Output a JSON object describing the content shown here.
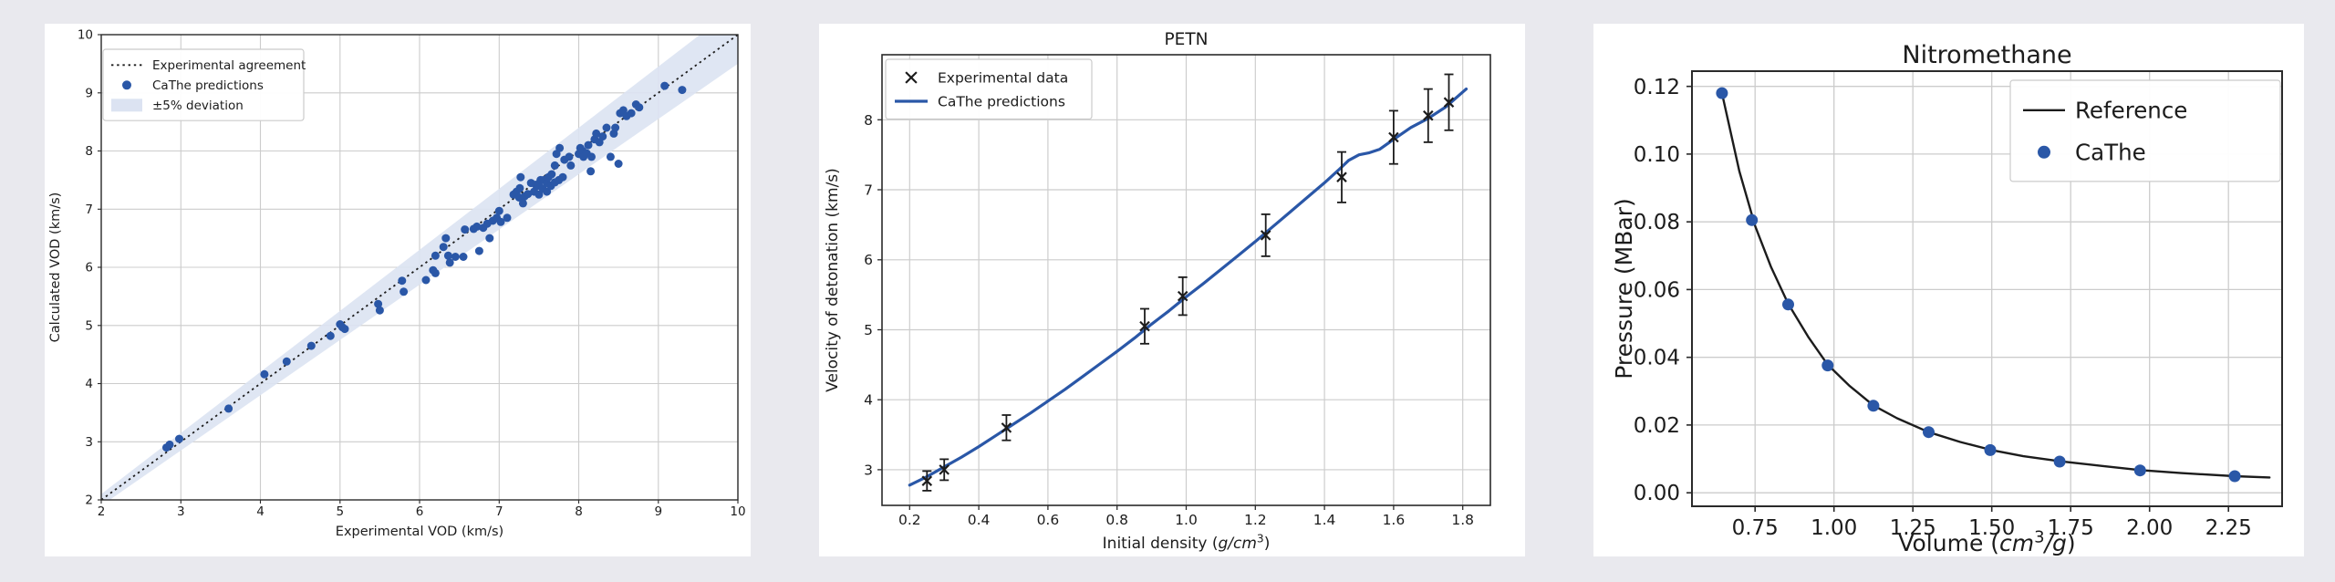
{
  "page": {
    "background": "#e9e9ee",
    "panel_background": "#ffffff"
  },
  "colors": {
    "blue": "#2a57a7",
    "black": "#1c1c1c",
    "band": "#dce3f2",
    "grid": "#cccccc",
    "spine": "#2a2a2a",
    "text": "#1c1c1c",
    "legend_border": "#cbcbcb"
  },
  "chart_data": [
    {
      "type": "scatter",
      "title": "",
      "xlabel": "Experimental VOD (km/s)",
      "ylabel": "Calculated VOD (km/s)",
      "xlabel_italic_unit": false,
      "ylabel_italic_unit": false,
      "xlim": [
        2,
        10
      ],
      "ylim": [
        2,
        10
      ],
      "xticks": [
        2,
        3,
        4,
        5,
        6,
        7,
        8,
        9,
        10
      ],
      "xtick_labels": [
        "2",
        "3",
        "4",
        "5",
        "6",
        "7",
        "8",
        "9",
        "10"
      ],
      "yticks": [
        2,
        3,
        4,
        5,
        6,
        7,
        8,
        9,
        10
      ],
      "ytick_labels": [
        "2",
        "3",
        "4",
        "5",
        "6",
        "7",
        "8",
        "9",
        "10"
      ],
      "grid": true,
      "identity_line": {
        "color": "#1c1c1c",
        "style": "dotted"
      },
      "band": {
        "pct": 0.05,
        "color": "#dce3f2"
      },
      "legend_position": "top-left",
      "legend": [
        {
          "label": "Experimental agreement",
          "swatch": "dotted",
          "color": "#1c1c1c"
        },
        {
          "label": "CaThe predictions",
          "swatch": "dot",
          "color": "#2a57a7"
        },
        {
          "label": "±5% deviation",
          "swatch": "band",
          "color": "#dce3f2"
        }
      ],
      "series": [
        {
          "name": "CaThe predictions",
          "kind": "scatter",
          "color": "#2a57a7",
          "points": [
            [
              2.82,
              2.9
            ],
            [
              2.86,
              2.95
            ],
            [
              2.98,
              3.05
            ],
            [
              3.6,
              3.57
            ],
            [
              4.05,
              4.16
            ],
            [
              4.33,
              4.38
            ],
            [
              4.64,
              4.65
            ],
            [
              4.88,
              4.82
            ],
            [
              5.0,
              5.02
            ],
            [
              5.03,
              4.97
            ],
            [
              5.06,
              4.94
            ],
            [
              5.48,
              5.37
            ],
            [
              5.5,
              5.26
            ],
            [
              5.78,
              5.77
            ],
            [
              5.8,
              5.58
            ],
            [
              6.08,
              5.78
            ],
            [
              6.17,
              5.95
            ],
            [
              6.2,
              5.9
            ],
            [
              6.2,
              6.2
            ],
            [
              6.3,
              6.35
            ],
            [
              6.33,
              6.5
            ],
            [
              6.36,
              6.2
            ],
            [
              6.38,
              6.08
            ],
            [
              6.45,
              6.18
            ],
            [
              6.55,
              6.18
            ],
            [
              6.57,
              6.65
            ],
            [
              6.68,
              6.66
            ],
            [
              6.72,
              6.7
            ],
            [
              6.75,
              6.28
            ],
            [
              6.8,
              6.68
            ],
            [
              6.85,
              6.75
            ],
            [
              6.88,
              6.5
            ],
            [
              6.92,
              6.8
            ],
            [
              6.97,
              6.85
            ],
            [
              7.0,
              6.97
            ],
            [
              7.02,
              6.78
            ],
            [
              7.1,
              6.85
            ],
            [
              7.18,
              7.25
            ],
            [
              7.22,
              7.3
            ],
            [
              7.25,
              7.2
            ],
            [
              7.26,
              7.36
            ],
            [
              7.27,
              7.55
            ],
            [
              7.3,
              7.1
            ],
            [
              7.32,
              7.22
            ],
            [
              7.36,
              7.26
            ],
            [
              7.4,
              7.45
            ],
            [
              7.44,
              7.3
            ],
            [
              7.46,
              7.42
            ],
            [
              7.5,
              7.25
            ],
            [
              7.5,
              7.4
            ],
            [
              7.52,
              7.5
            ],
            [
              7.55,
              7.35
            ],
            [
              7.56,
              7.5
            ],
            [
              7.6,
              7.3
            ],
            [
              7.6,
              7.45
            ],
            [
              7.62,
              7.55
            ],
            [
              7.65,
              7.4
            ],
            [
              7.66,
              7.6
            ],
            [
              7.7,
              7.46
            ],
            [
              7.7,
              7.75
            ],
            [
              7.72,
              7.95
            ],
            [
              7.75,
              7.5
            ],
            [
              7.76,
              8.05
            ],
            [
              7.8,
              7.55
            ],
            [
              7.82,
              7.85
            ],
            [
              7.88,
              7.9
            ],
            [
              7.9,
              7.75
            ],
            [
              8.0,
              7.95
            ],
            [
              8.02,
              8.05
            ],
            [
              8.05,
              8.0
            ],
            [
              8.06,
              7.9
            ],
            [
              8.1,
              7.96
            ],
            [
              8.12,
              8.1
            ],
            [
              8.15,
              7.65
            ],
            [
              8.16,
              7.9
            ],
            [
              8.2,
              8.2
            ],
            [
              8.22,
              8.3
            ],
            [
              8.26,
              8.15
            ],
            [
              8.3,
              8.25
            ],
            [
              8.35,
              8.4
            ],
            [
              8.4,
              7.9
            ],
            [
              8.44,
              8.3
            ],
            [
              8.46,
              8.4
            ],
            [
              8.5,
              7.78
            ],
            [
              8.52,
              8.65
            ],
            [
              8.56,
              8.7
            ],
            [
              8.6,
              8.6
            ],
            [
              8.66,
              8.65
            ],
            [
              8.72,
              8.8
            ],
            [
              8.76,
              8.75
            ],
            [
              9.08,
              9.12
            ],
            [
              9.3,
              9.05
            ]
          ]
        }
      ]
    },
    {
      "type": "line",
      "title": "PETN",
      "xlabel": "Initial density (g/cm³)",
      "ylabel": "Velocity of detonation (km/s)",
      "xlabel_italic_unit": true,
      "ylabel_italic_unit": false,
      "xlim": [
        0.12,
        1.88
      ],
      "ylim": [
        2.49,
        8.93
      ],
      "xticks": [
        0.2,
        0.4,
        0.6,
        0.8,
        1.0,
        1.2,
        1.4,
        1.6,
        1.8
      ],
      "xtick_labels": [
        "0.2",
        "0.4",
        "0.6",
        "0.8",
        "1.0",
        "1.2",
        "1.4",
        "1.6",
        "1.8"
      ],
      "yticks": [
        3,
        4,
        5,
        6,
        7,
        8
      ],
      "ytick_labels": [
        "3",
        "4",
        "5",
        "6",
        "7",
        "8"
      ],
      "grid": true,
      "legend_position": "top-left",
      "legend": [
        {
          "label": "Experimental data",
          "swatch": "xmark",
          "color": "#1c1c1c"
        },
        {
          "label": "CaThe predictions",
          "swatch": "line",
          "color": "#2a57a7"
        }
      ],
      "series": [
        {
          "name": "CaThe predictions",
          "kind": "line",
          "color": "#2a57a7",
          "width": 3.2,
          "points": [
            [
              0.2,
              2.78
            ],
            [
              0.25,
              2.9
            ],
            [
              0.3,
              3.04
            ],
            [
              0.35,
              3.18
            ],
            [
              0.4,
              3.33
            ],
            [
              0.45,
              3.49
            ],
            [
              0.5,
              3.65
            ],
            [
              0.55,
              3.81
            ],
            [
              0.6,
              3.98
            ],
            [
              0.65,
              4.15
            ],
            [
              0.7,
              4.33
            ],
            [
              0.75,
              4.51
            ],
            [
              0.8,
              4.69
            ],
            [
              0.85,
              4.88
            ],
            [
              0.9,
              5.08
            ],
            [
              0.95,
              5.27
            ],
            [
              1.0,
              5.47
            ],
            [
              1.05,
              5.66
            ],
            [
              1.1,
              5.86
            ],
            [
              1.15,
              6.06
            ],
            [
              1.2,
              6.26
            ],
            [
              1.25,
              6.47
            ],
            [
              1.3,
              6.68
            ],
            [
              1.35,
              6.89
            ],
            [
              1.4,
              7.1
            ],
            [
              1.44,
              7.28
            ],
            [
              1.47,
              7.42
            ],
            [
              1.5,
              7.5
            ],
            [
              1.53,
              7.53
            ],
            [
              1.56,
              7.58
            ],
            [
              1.6,
              7.72
            ],
            [
              1.65,
              7.89
            ],
            [
              1.7,
              8.02
            ],
            [
              1.75,
              8.18
            ],
            [
              1.81,
              8.44
            ]
          ]
        },
        {
          "name": "Experimental data",
          "kind": "errorbar",
          "color": "#1c1c1c",
          "points": [
            [
              0.25,
              2.84,
              0.14
            ],
            [
              0.3,
              3.0,
              0.15
            ],
            [
              0.48,
              3.6,
              0.18
            ],
            [
              0.88,
              5.05,
              0.25
            ],
            [
              0.99,
              5.48,
              0.27
            ],
            [
              1.23,
              6.35,
              0.3
            ],
            [
              1.45,
              7.18,
              0.36
            ],
            [
              1.6,
              7.75,
              0.38
            ],
            [
              1.7,
              8.06,
              0.38
            ],
            [
              1.76,
              8.25,
              0.4
            ]
          ]
        }
      ]
    },
    {
      "type": "line",
      "title": "Nitromethane",
      "xlabel": "Volume (cm³/g)",
      "ylabel": "Pressure (MBar)",
      "xlabel_italic_unit": true,
      "ylabel_italic_unit": false,
      "xlim": [
        0.55,
        2.42
      ],
      "ylim": [
        -0.004,
        0.1245
      ],
      "xticks": [
        0.75,
        1.0,
        1.25,
        1.5,
        1.75,
        2.0,
        2.25
      ],
      "xtick_labels": [
        "0.75",
        "1.00",
        "1.25",
        "1.50",
        "1.75",
        "2.00",
        "2.25"
      ],
      "yticks": [
        0.0,
        0.02,
        0.04,
        0.06,
        0.08,
        0.1,
        0.12
      ],
      "ytick_labels": [
        "0.00",
        "0.02",
        "0.04",
        "0.06",
        "0.08",
        "0.10",
        "0.12"
      ],
      "grid": true,
      "legend_position": "top-right",
      "legend": [
        {
          "label": "Reference",
          "swatch": "line",
          "color": "#1c1c1c"
        },
        {
          "label": "CaThe",
          "swatch": "dot",
          "color": "#2a57a7"
        }
      ],
      "series": [
        {
          "name": "Reference",
          "kind": "line",
          "color": "#1c1c1c",
          "width": 2.4,
          "points": [
            [
              0.645,
              0.118
            ],
            [
              0.7,
              0.095
            ],
            [
              0.75,
              0.0788
            ],
            [
              0.8,
              0.0668
            ],
            [
              0.855,
              0.0558
            ],
            [
              0.92,
              0.0458
            ],
            [
              0.98,
              0.0378
            ],
            [
              1.05,
              0.0315
            ],
            [
              1.125,
              0.0258
            ],
            [
              1.2,
              0.022
            ],
            [
              1.3,
              0.0179
            ],
            [
              1.4,
              0.015
            ],
            [
              1.5,
              0.0126
            ],
            [
              1.6,
              0.0108
            ],
            [
              1.715,
              0.0093
            ],
            [
              1.85,
              0.0079
            ],
            [
              1.97,
              0.0067
            ],
            [
              2.1,
              0.0058
            ],
            [
              2.27,
              0.0049
            ],
            [
              2.38,
              0.0045
            ]
          ]
        },
        {
          "name": "CaThe",
          "kind": "scatter",
          "color": "#2a57a7",
          "points": [
            [
              0.645,
              0.118
            ],
            [
              0.74,
              0.0805
            ],
            [
              0.855,
              0.0556
            ],
            [
              0.98,
              0.0376
            ],
            [
              1.125,
              0.0257
            ],
            [
              1.3,
              0.0179
            ],
            [
              1.495,
              0.0126
            ],
            [
              1.715,
              0.0092
            ],
            [
              1.97,
              0.0066
            ],
            [
              2.27,
              0.0049
            ]
          ]
        }
      ]
    }
  ]
}
